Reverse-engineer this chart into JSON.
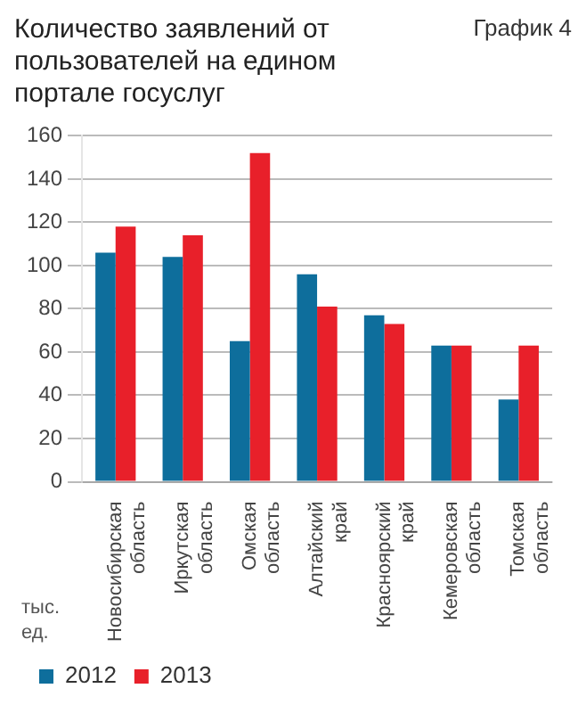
{
  "chart_data": {
    "type": "bar",
    "title": "Количество заявлений от пользователей на едином портале госуслуг",
    "ylabel": "тыс. ед.",
    "annotations": [
      "График 4"
    ],
    "categories": [
      "Новосибирская область",
      "Иркутская область",
      "Омская область",
      "Алтайский край",
      "Красноярский край",
      "Кемеровская область",
      "Томская область"
    ],
    "series": [
      {
        "name": "2012",
        "color": "#0e6e9c",
        "values": [
          106,
          104,
          65,
          96,
          77,
          63,
          38
        ]
      },
      {
        "name": "2013",
        "color": "#e8202a",
        "values": [
          118,
          114,
          152,
          81,
          73,
          63,
          63
        ]
      }
    ],
    "ylim": [
      0,
      160
    ],
    "yticks": [
      0,
      20,
      40,
      60,
      80,
      100,
      120,
      140,
      160
    ],
    "grid": "y",
    "legend": "bottom left"
  }
}
